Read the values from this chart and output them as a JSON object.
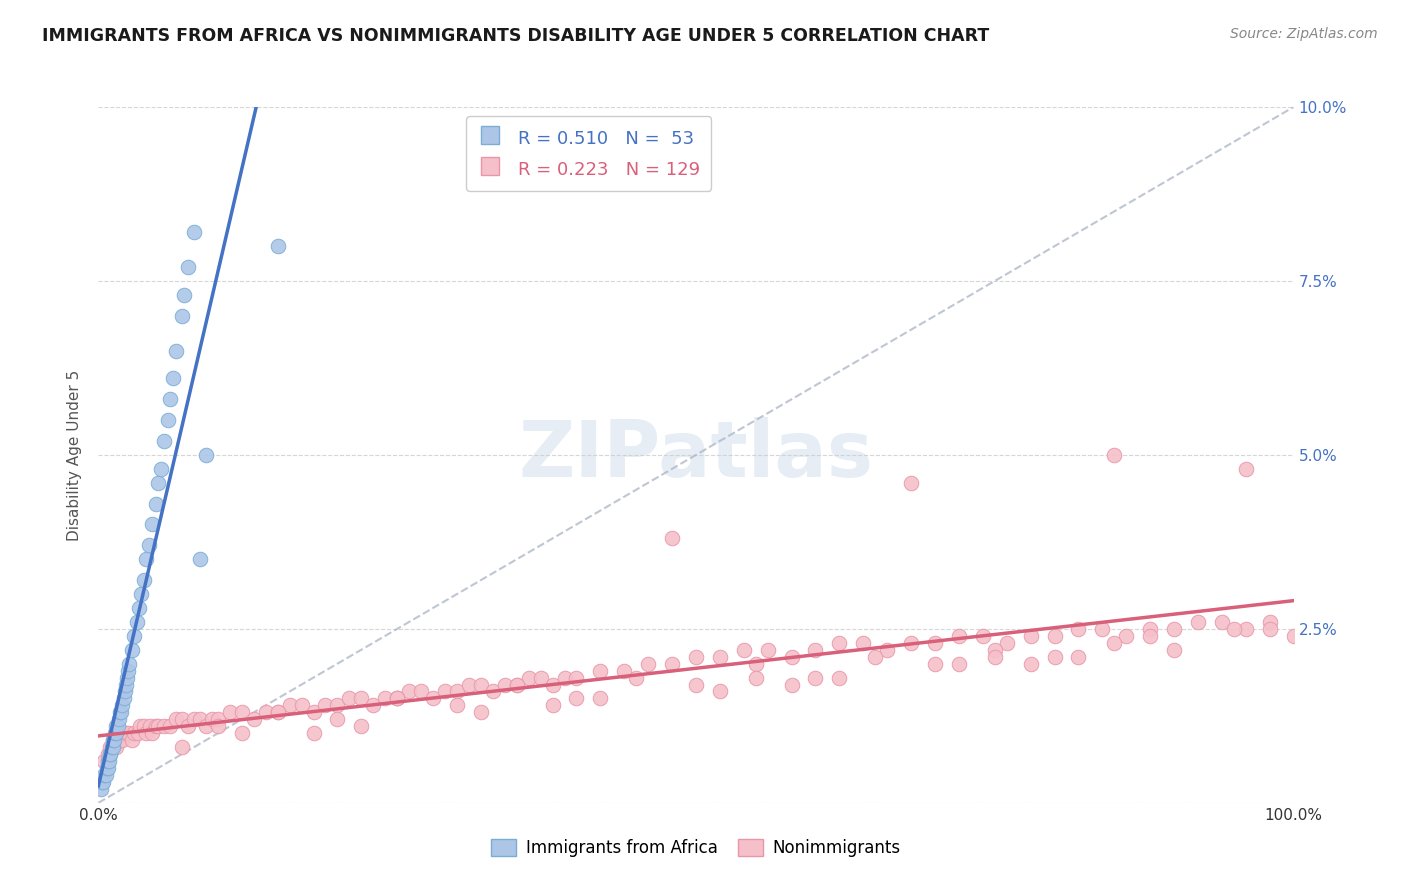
{
  "title": "IMMIGRANTS FROM AFRICA VS NONIMMIGRANTS DISABILITY AGE UNDER 5 CORRELATION CHART",
  "source": "Source: ZipAtlas.com",
  "ylabel": "Disability Age Under 5",
  "xlabel": "",
  "xlim": [
    0.0,
    1.0
  ],
  "ylim": [
    0.0,
    0.1
  ],
  "series1_label": "Immigrants from Africa",
  "series1_R": "0.510",
  "series1_N": "53",
  "series1_color": "#adc6e8",
  "series1_edge_color": "#7aadd4",
  "series1_line_color": "#4472c4",
  "series2_label": "Nonimmigrants",
  "series2_R": "0.223",
  "series2_N": "129",
  "series2_color": "#f5c0ca",
  "series2_edge_color": "#e896a8",
  "series2_line_color": "#d9607a",
  "ref_line_color": "#b0b8c8",
  "background_color": "#ffffff",
  "legend_text_color1": "#4472c4",
  "legend_text_color2": "#d9607a",
  "yaxis_label_color": "#4472c4",
  "watermark_text": "ZIPatlas",
  "series1_x": [
    0.002,
    0.003,
    0.004,
    0.005,
    0.006,
    0.007,
    0.008,
    0.008,
    0.009,
    0.01,
    0.01,
    0.011,
    0.012,
    0.012,
    0.013,
    0.014,
    0.015,
    0.015,
    0.016,
    0.017,
    0.018,
    0.019,
    0.02,
    0.021,
    0.022,
    0.023,
    0.024,
    0.025,
    0.026,
    0.028,
    0.03,
    0.032,
    0.034,
    0.036,
    0.038,
    0.04,
    0.042,
    0.045,
    0.048,
    0.05,
    0.052,
    0.055,
    0.058,
    0.06,
    0.062,
    0.065,
    0.07,
    0.072,
    0.075,
    0.08,
    0.085,
    0.09,
    0.15
  ],
  "series1_y": [
    0.002,
    0.003,
    0.003,
    0.004,
    0.004,
    0.005,
    0.005,
    0.006,
    0.006,
    0.007,
    0.007,
    0.008,
    0.008,
    0.009,
    0.009,
    0.01,
    0.01,
    0.011,
    0.011,
    0.012,
    0.013,
    0.013,
    0.014,
    0.015,
    0.016,
    0.017,
    0.018,
    0.019,
    0.02,
    0.022,
    0.024,
    0.026,
    0.028,
    0.03,
    0.032,
    0.035,
    0.037,
    0.04,
    0.043,
    0.046,
    0.048,
    0.052,
    0.055,
    0.058,
    0.061,
    0.065,
    0.07,
    0.073,
    0.077,
    0.082,
    0.035,
    0.05,
    0.08
  ],
  "series2_x": [
    0.005,
    0.008,
    0.01,
    0.012,
    0.015,
    0.018,
    0.02,
    0.023,
    0.025,
    0.028,
    0.03,
    0.033,
    0.035,
    0.038,
    0.04,
    0.043,
    0.045,
    0.048,
    0.05,
    0.055,
    0.06,
    0.065,
    0.07,
    0.075,
    0.08,
    0.085,
    0.09,
    0.095,
    0.1,
    0.11,
    0.12,
    0.13,
    0.14,
    0.15,
    0.16,
    0.17,
    0.18,
    0.19,
    0.2,
    0.21,
    0.22,
    0.23,
    0.24,
    0.25,
    0.26,
    0.27,
    0.28,
    0.29,
    0.3,
    0.31,
    0.32,
    0.33,
    0.34,
    0.35,
    0.36,
    0.37,
    0.38,
    0.39,
    0.4,
    0.42,
    0.44,
    0.46,
    0.48,
    0.5,
    0.52,
    0.54,
    0.56,
    0.58,
    0.6,
    0.62,
    0.64,
    0.66,
    0.68,
    0.7,
    0.72,
    0.74,
    0.76,
    0.78,
    0.8,
    0.82,
    0.84,
    0.86,
    0.88,
    0.9,
    0.92,
    0.94,
    0.96,
    0.98,
    1.0,
    0.15,
    0.25,
    0.35,
    0.45,
    0.55,
    0.65,
    0.75,
    0.85,
    0.95,
    0.2,
    0.3,
    0.4,
    0.5,
    0.6,
    0.7,
    0.8,
    0.9,
    0.1,
    0.25,
    0.55,
    0.75,
    0.88,
    0.98,
    0.18,
    0.38,
    0.58,
    0.78,
    0.48,
    0.68,
    0.85,
    0.96,
    0.07,
    0.12,
    0.22,
    0.32,
    0.42,
    0.52,
    0.62,
    0.72,
    0.82
  ],
  "series2_y": [
    0.006,
    0.007,
    0.008,
    0.009,
    0.008,
    0.009,
    0.009,
    0.01,
    0.01,
    0.009,
    0.01,
    0.01,
    0.011,
    0.011,
    0.01,
    0.011,
    0.01,
    0.011,
    0.011,
    0.011,
    0.011,
    0.012,
    0.012,
    0.011,
    0.012,
    0.012,
    0.011,
    0.012,
    0.012,
    0.013,
    0.013,
    0.012,
    0.013,
    0.013,
    0.014,
    0.014,
    0.013,
    0.014,
    0.014,
    0.015,
    0.015,
    0.014,
    0.015,
    0.015,
    0.016,
    0.016,
    0.015,
    0.016,
    0.016,
    0.017,
    0.017,
    0.016,
    0.017,
    0.017,
    0.018,
    0.018,
    0.017,
    0.018,
    0.018,
    0.019,
    0.019,
    0.02,
    0.02,
    0.021,
    0.021,
    0.022,
    0.022,
    0.021,
    0.022,
    0.023,
    0.023,
    0.022,
    0.023,
    0.023,
    0.024,
    0.024,
    0.023,
    0.024,
    0.024,
    0.025,
    0.025,
    0.024,
    0.025,
    0.025,
    0.026,
    0.026,
    0.025,
    0.026,
    0.024,
    0.013,
    0.015,
    0.017,
    0.018,
    0.02,
    0.021,
    0.022,
    0.023,
    0.025,
    0.012,
    0.014,
    0.015,
    0.017,
    0.018,
    0.02,
    0.021,
    0.022,
    0.011,
    0.015,
    0.018,
    0.021,
    0.024,
    0.025,
    0.01,
    0.014,
    0.017,
    0.02,
    0.038,
    0.046,
    0.05,
    0.048,
    0.008,
    0.01,
    0.011,
    0.013,
    0.015,
    0.016,
    0.018,
    0.02,
    0.021
  ],
  "ref_line_x": [
    0.0,
    1.0
  ],
  "ref_line_y": [
    0.0,
    0.1
  ]
}
